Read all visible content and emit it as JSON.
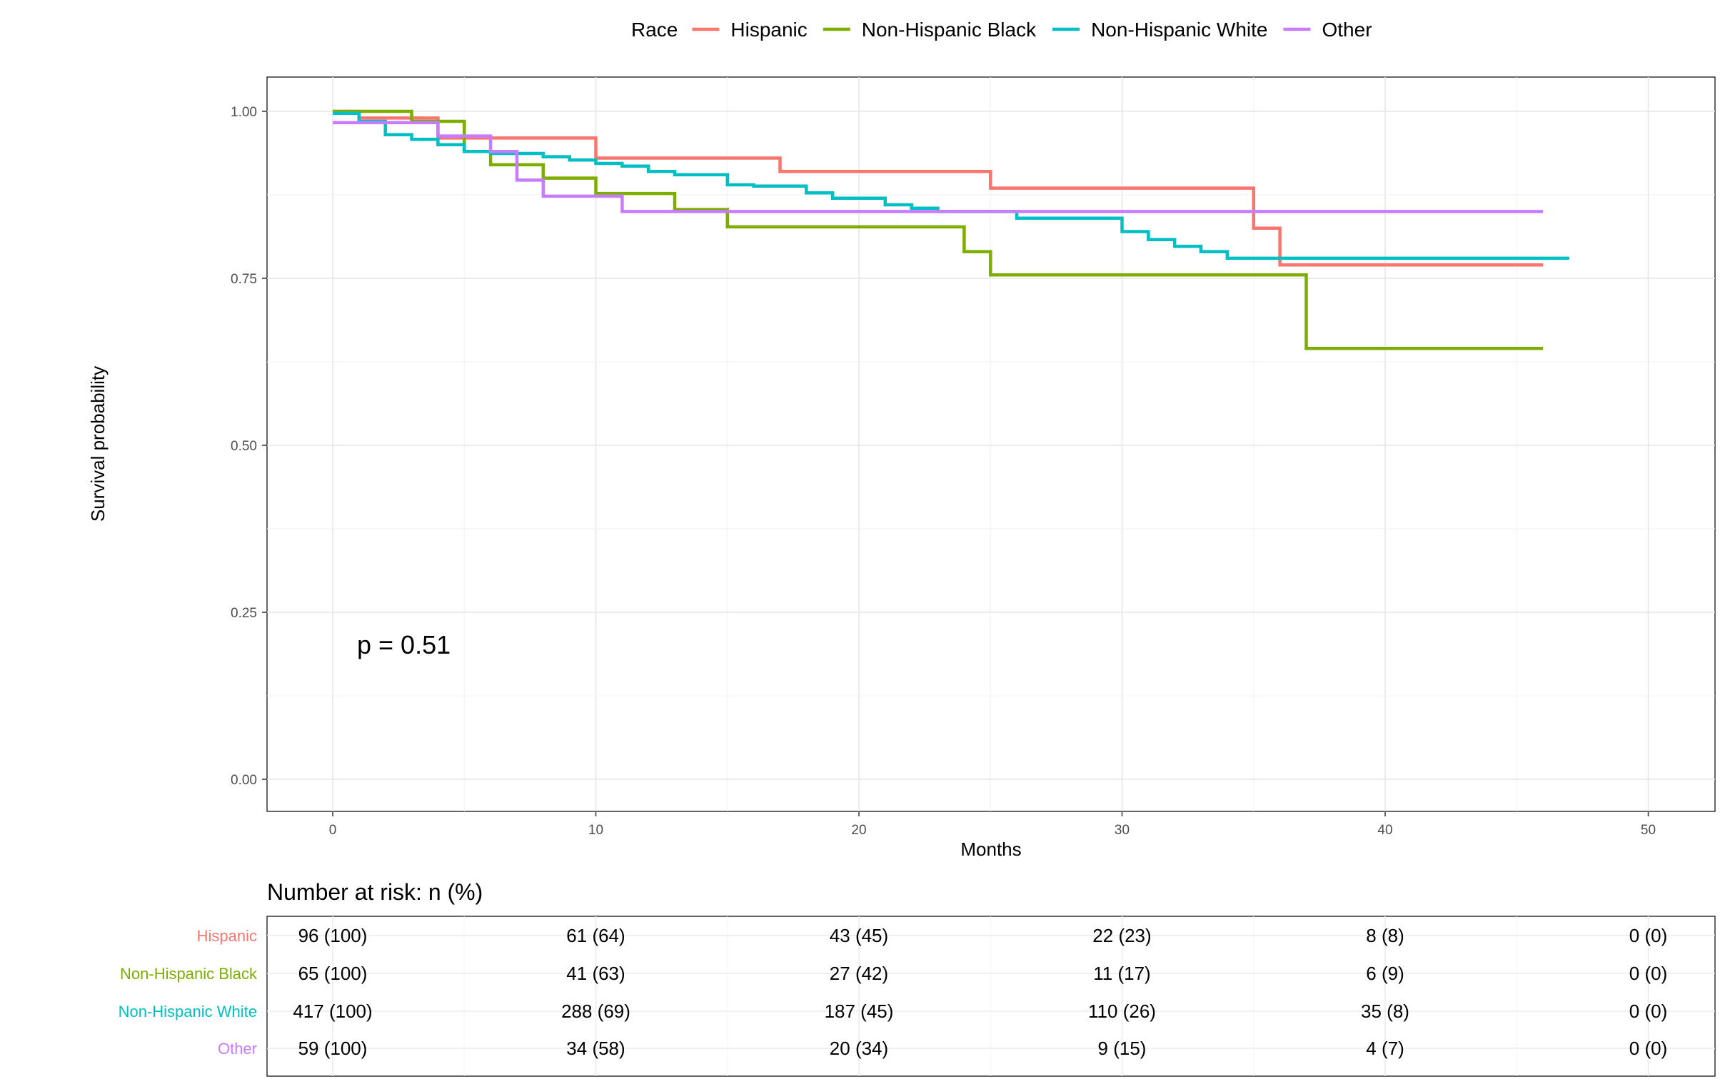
{
  "chart_data": {
    "type": "line",
    "subtype": "kaplan-meier step",
    "legend_title": "Race",
    "legend_position": "top",
    "xlabel": "Months",
    "ylabel": "Survival probability",
    "xlim": [
      0,
      50
    ],
    "ylim": [
      0,
      1
    ],
    "x_ticks": [
      0,
      10,
      20,
      30,
      40,
      50
    ],
    "y_ticks": [
      0,
      0.25,
      0.5,
      0.75,
      1
    ],
    "y_tick_labels": [
      "0.00",
      "0.25",
      "0.50",
      "0.75",
      "1.00"
    ],
    "grid": true,
    "annotation": "p = 0.51",
    "series": [
      {
        "name": "Hispanic",
        "color": "#F8766D",
        "x": [
          0,
          1,
          4,
          10,
          17,
          25,
          35,
          36,
          46
        ],
        "y": [
          1.0,
          0.99,
          0.96,
          0.93,
          0.91,
          0.885,
          0.825,
          0.77,
          0.77
        ]
      },
      {
        "name": "Non-Hispanic Black",
        "color": "#7CAE00",
        "x": [
          0,
          3,
          5,
          6,
          8,
          10,
          13,
          15,
          24,
          25,
          37,
          46
        ],
        "y": [
          1.0,
          0.985,
          0.94,
          0.92,
          0.9,
          0.877,
          0.853,
          0.827,
          0.79,
          0.755,
          0.645,
          0.645
        ]
      },
      {
        "name": "Non-Hispanic White",
        "color": "#00BFC4",
        "x": [
          0,
          1,
          2,
          3,
          4,
          5,
          6,
          8,
          9,
          10,
          11,
          12,
          13,
          15,
          16,
          18,
          19,
          21,
          22,
          23,
          26,
          27,
          30,
          31,
          32,
          33,
          34,
          47
        ],
        "y": [
          0.997,
          0.985,
          0.965,
          0.958,
          0.95,
          0.94,
          0.937,
          0.932,
          0.927,
          0.922,
          0.918,
          0.91,
          0.905,
          0.89,
          0.888,
          0.878,
          0.87,
          0.86,
          0.855,
          0.85,
          0.84,
          0.84,
          0.82,
          0.808,
          0.798,
          0.79,
          0.78,
          0.78
        ]
      },
      {
        "name": "Other",
        "color": "#C77CFF",
        "x": [
          0,
          4,
          6,
          7,
          8,
          11,
          46
        ],
        "y": [
          0.983,
          0.963,
          0.94,
          0.897,
          0.873,
          0.85,
          0.85
        ]
      }
    ],
    "risk_table": {
      "title": "Number at risk: n (%)",
      "time_points": [
        0,
        10,
        20,
        30,
        40,
        50
      ],
      "rows": [
        {
          "name": "Hispanic",
          "color": "#F8766D",
          "values": [
            "96 (100)",
            "61 (64)",
            "43 (45)",
            "22 (23)",
            "8 (8)",
            "0 (0)"
          ]
        },
        {
          "name": "Non-Hispanic Black",
          "color": "#7CAE00",
          "values": [
            "65 (100)",
            "41 (63)",
            "27 (42)",
            "11 (17)",
            "6 (9)",
            "0 (0)"
          ]
        },
        {
          "name": "Non-Hispanic White",
          "color": "#00BFC4",
          "values": [
            "417 (100)",
            "288 (69)",
            "187 (45)",
            "110 (26)",
            "35 (8)",
            "0 (0)"
          ]
        },
        {
          "name": "Other",
          "color": "#C77CFF",
          "values": [
            "59 (100)",
            "34 (58)",
            "20 (34)",
            "9 (15)",
            "4 (7)",
            "0 (0)"
          ]
        }
      ]
    }
  }
}
